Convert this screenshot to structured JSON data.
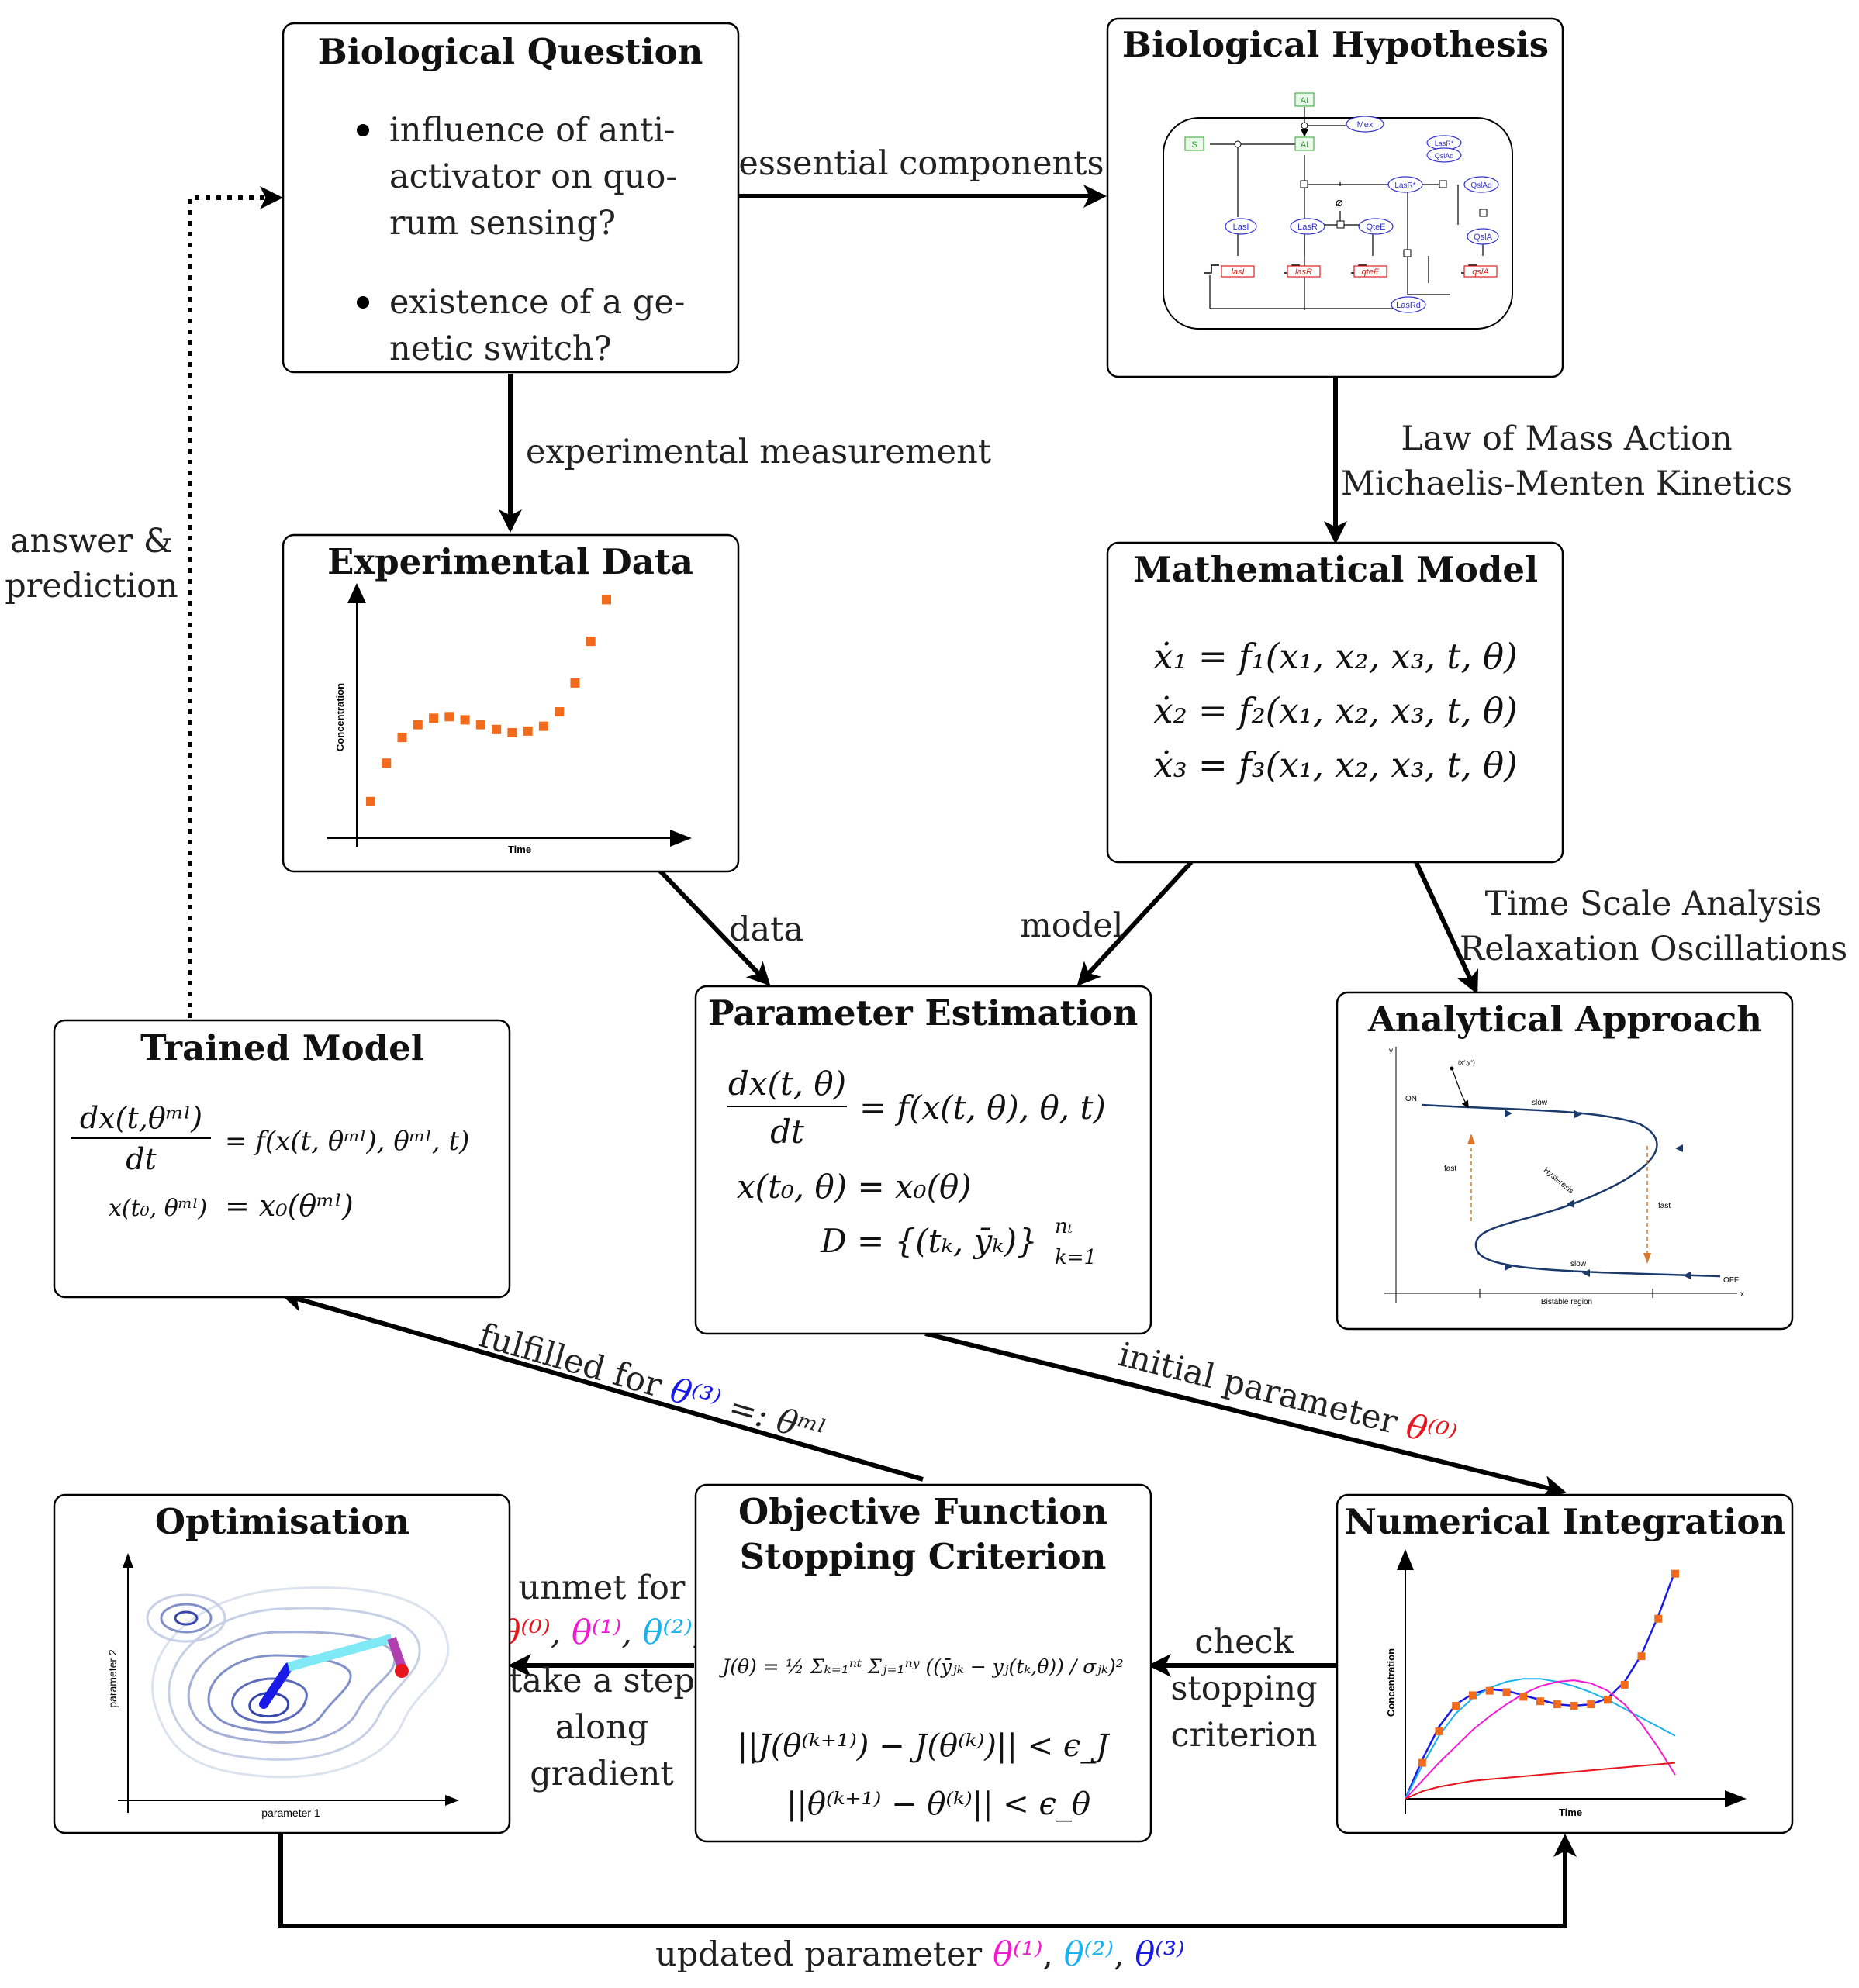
{
  "boxes": {
    "bio_question": {
      "title": "Biological Question",
      "bullets": [
        [
          "influence of anti-",
          "activator on quo-",
          "rum sensing?"
        ],
        [
          "existence of a ge-",
          "netic switch?"
        ]
      ]
    },
    "bio_hypothesis": {
      "title": "Biological Hypothesis",
      "network_nodes": [
        "AI",
        "S",
        "AI",
        "Mex",
        "LasR*",
        "QslAd",
        "LasR*",
        "QslAd",
        "LasI",
        "LasR",
        "QteE",
        "QslA",
        "lasI",
        "lasR",
        "qteE",
        "qslA",
        "LasRd"
      ]
    },
    "exp_data": {
      "title": "Experimental Data",
      "ylabel": "Concentration",
      "xlabel": "Time"
    },
    "math_model": {
      "title": "Mathematical Model",
      "equations": [
        "ẋ₁ = f₁(x₁, x₂, x₃, t, θ)",
        "ẋ₂ = f₂(x₁, x₂, x₃, t, θ)",
        "ẋ₃ = f₃(x₁, x₂, x₃, t, θ)"
      ]
    },
    "trained_model": {
      "title": "Trained Model",
      "eq1_num": "dx(t,θᵐˡ)",
      "eq1_den": "dt",
      "eq1_rhs": "= f(x(t, θᵐˡ), θᵐˡ, t)",
      "eq2_lhs": "x(t₀, θᵐˡ)",
      "eq2_rhs": "= x₀(θᵐˡ)"
    },
    "param_est": {
      "title": "Parameter Estimation",
      "eq1_num": "dx(t, θ)",
      "eq1_den": "dt",
      "eq1_rhs": "= f(x(t, θ), θ, t)",
      "eq2": "x(t₀, θ) = x₀(θ)",
      "eq3": "D = {(tₖ, ȳₖ)}",
      "eq3_sub": "k=1",
      "eq3_sup": "nₜ"
    },
    "analytical": {
      "title": "Analytical Approach",
      "ylabel": "y",
      "xlabel": "x",
      "point_label": "(x*,y*)",
      "on_label": "ON",
      "off_label": "OFF",
      "slow_top": "slow",
      "slow_bottom": "slow",
      "fast_left": "fast",
      "fast_right": "fast",
      "hysteresis": "Hysteresis",
      "bistable": "Bistable region"
    },
    "optimisation": {
      "title": "Optimisation",
      "xlabel": "parameter 1",
      "ylabel": "parameter 2"
    },
    "objective": {
      "title_line1": "Objective Function",
      "title_line2": "Stopping Criterion",
      "j_eq": "J(θ) = ½ Σₖ₌₁ⁿᵗ Σⱼ₌₁ⁿʸ ((ȳⱼₖ − yⱼ(tₖ,θ)) / σⱼₖ)²",
      "crit1": "||J(θ⁽ᵏ⁺¹⁾) − J(θ⁽ᵏ⁾)|| < ϵ_J",
      "crit2": "||θ⁽ᵏ⁺¹⁾ − θ⁽ᵏ⁾|| < ϵ_θ"
    },
    "num_int": {
      "title": "Numerical Integration",
      "ylabel": "Concentration",
      "xlabel": "Time"
    }
  },
  "edges": {
    "essential": "essential components",
    "exp_meas": "experimental measurement",
    "mass_action_1": "Law of Mass Action",
    "mass_action_2": "Michaelis-Menten Kinetics",
    "answer_1": "answer &",
    "answer_2": "prediction",
    "data": "data",
    "model": "model",
    "timescale_1": "Time Scale Analysis",
    "timescale_2": "Relaxation Oscillations",
    "fulfilled": "fulfilled for",
    "fulfilled_theta": "θ⁽³⁾",
    "fulfilled_rest": "=: θᵐˡ",
    "initial": "initial parameter",
    "initial_theta": "θ⁽⁰⁾",
    "unmet_1": "unmet for",
    "unmet_thetas": [
      "θ⁽⁰⁾",
      "θ⁽¹⁾",
      "θ⁽²⁾"
    ],
    "unmet_2": "take a step",
    "unmet_3": "along",
    "unmet_4": "gradient",
    "check_1": "check",
    "check_2": "stopping",
    "check_3": "criterion",
    "updated": "updated parameter",
    "updated_thetas": [
      "θ⁽¹⁾",
      "θ⁽²⁾",
      "θ⁽³⁾"
    ]
  },
  "colors": {
    "theta0": "#e8141e",
    "theta1": "#f21ad2",
    "theta2": "#1ab2ee",
    "theta3": "#1a1ae8",
    "data_point": "#f26a1b",
    "network_green": "#2ea02e",
    "network_blue": "#3333cc",
    "network_red": "#e02020",
    "curve_navy": "#1b3a6b",
    "arrow_orange": "#d9782a"
  },
  "chart_data": [
    {
      "type": "scatter",
      "title": "",
      "xlabel": "Time",
      "ylabel": "Concentration",
      "x": [
        1,
        2,
        3,
        4,
        5,
        6,
        7,
        8,
        9,
        10,
        11,
        12,
        13,
        14,
        15,
        16
      ],
      "y": [
        0.18,
        0.42,
        0.58,
        0.66,
        0.7,
        0.71,
        0.69,
        0.66,
        0.63,
        0.61,
        0.62,
        0.65,
        0.74,
        0.92,
        1.18,
        1.44
      ]
    },
    {
      "type": "line",
      "title": "",
      "xlabel": "Time",
      "ylabel": "Concentration",
      "x": [
        0,
        1,
        2,
        3,
        4,
        5,
        6,
        7,
        8,
        9,
        10,
        11,
        12,
        13,
        14,
        15,
        16
      ],
      "series": [
        {
          "color": "#1a1ae8",
          "values": [
            0,
            0.26,
            0.48,
            0.63,
            0.7,
            0.73,
            0.72,
            0.69,
            0.66,
            0.63,
            0.62,
            0.63,
            0.67,
            0.78,
            0.96,
            1.22,
            1.52
          ]
        },
        {
          "color": "#1ab2ee",
          "values": [
            0,
            0.22,
            0.42,
            0.57,
            0.67,
            0.74,
            0.78,
            0.8,
            0.8,
            0.78,
            0.75,
            0.71,
            0.66,
            0.6,
            0.54,
            0.48,
            0.42
          ]
        },
        {
          "color": "#f21ad2",
          "values": [
            0,
            0.12,
            0.24,
            0.35,
            0.46,
            0.55,
            0.63,
            0.7,
            0.75,
            0.78,
            0.79,
            0.77,
            0.72,
            0.63,
            0.5,
            0.34,
            0.16
          ]
        },
        {
          "color": "#e8141e",
          "values": [
            0,
            0.05,
            0.08,
            0.1,
            0.12,
            0.13,
            0.14,
            0.15,
            0.16,
            0.17,
            0.18,
            0.19,
            0.2,
            0.21,
            0.22,
            0.23,
            0.24
          ]
        }
      ],
      "markers_x": [
        1,
        2,
        3,
        4,
        5,
        6,
        7,
        8,
        9,
        10,
        11,
        12,
        13,
        14,
        15,
        16
      ],
      "markers_y": [
        0.24,
        0.45,
        0.62,
        0.69,
        0.72,
        0.71,
        0.68,
        0.65,
        0.63,
        0.62,
        0.63,
        0.66,
        0.76,
        0.95,
        1.2,
        1.5
      ]
    }
  ]
}
